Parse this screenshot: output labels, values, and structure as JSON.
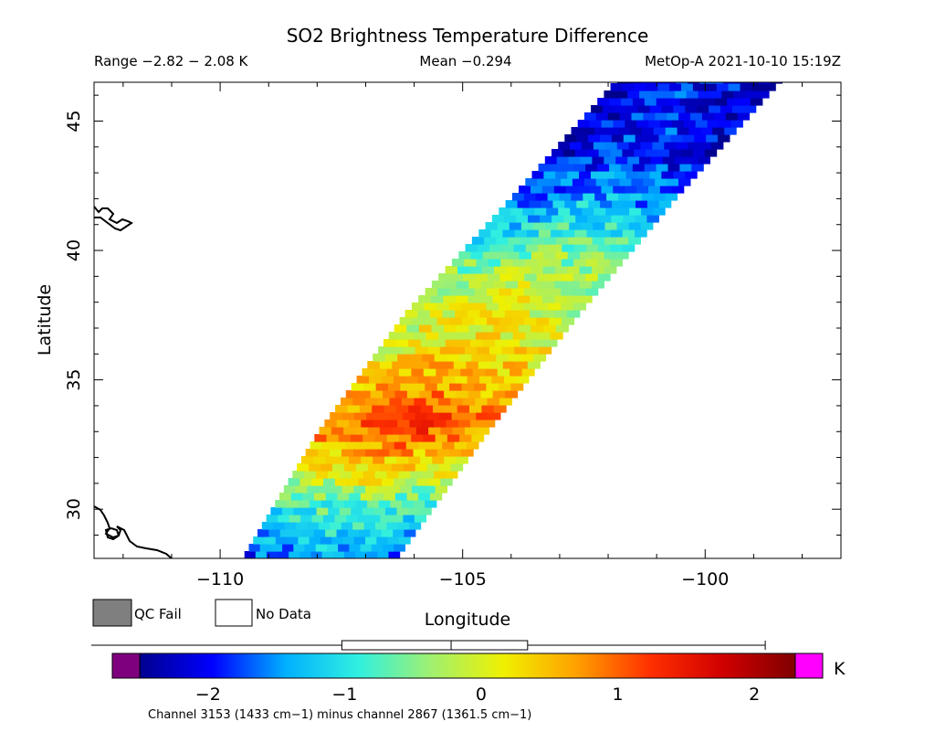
{
  "chart_data": {
    "type": "heatmap",
    "title": "SO2 Brightness Temperature Difference",
    "subtitle": {
      "range": "Range −2.82 − 2.08 K",
      "mean": "Mean −0.294",
      "satellite_time": "MetOp-A 2021-10-10 15:19Z"
    },
    "xlabel": "Longitude",
    "ylabel": "Latitude",
    "xlim": [
      -112.6,
      -97.2
    ],
    "ylim": [
      28.1,
      46.5
    ],
    "x_ticks": [
      {
        "value": -110,
        "label": "−110"
      },
      {
        "value": -105,
        "label": "−105"
      },
      {
        "value": -100,
        "label": "−100"
      }
    ],
    "y_ticks": [
      {
        "value": 30,
        "label": "30"
      },
      {
        "value": 35,
        "label": "35"
      },
      {
        "value": 40,
        "label": "40"
      },
      {
        "value": 45,
        "label": "45"
      }
    ],
    "swath": {
      "left_edge_lon": [
        -109.5,
        -108.0,
        -106.2,
        -104.0,
        -101.8
      ],
      "right_edge_lon": [
        -106.3,
        -104.5,
        -102.6,
        -100.6,
        -98.4
      ],
      "edge_lat": [
        28.1,
        32.8,
        37.4,
        41.9,
        46.5
      ]
    },
    "anomaly_band": [
      {
        "lat": 28.1,
        "value": -1.4
      },
      {
        "lat": 30.0,
        "value": -0.6
      },
      {
        "lat": 31.5,
        "value": 0.4
      },
      {
        "lat": 33.0,
        "value": 1.2
      },
      {
        "lat": 34.5,
        "value": 0.8
      },
      {
        "lat": 36.5,
        "value": 0.3
      },
      {
        "lat": 38.5,
        "value": 0.0
      },
      {
        "lat": 40.0,
        "value": -0.5
      },
      {
        "lat": 41.5,
        "value": -1.2
      },
      {
        "lat": 43.5,
        "value": -1.8
      },
      {
        "lat": 46.5,
        "value": -1.9
      }
    ],
    "legend": {
      "qc_fail": {
        "label": "QC Fail",
        "color": "#7f7f7f"
      },
      "no_data": {
        "label": "No Data",
        "color": "#ffffff"
      }
    },
    "colorbar": {
      "min": -2.5,
      "max": 2.3,
      "unit": "K",
      "ticks": [
        {
          "value": -2,
          "label": "−2"
        },
        {
          "value": -1,
          "label": "−1"
        },
        {
          "value": 0,
          "label": "0"
        },
        {
          "value": 1,
          "label": "1"
        },
        {
          "value": 2,
          "label": "2"
        }
      ],
      "under_color": "#7f007f",
      "over_color": "#ff00ff",
      "stops": [
        "#00008f",
        "#0000ff",
        "#00b0ff",
        "#30f0e0",
        "#a0f070",
        "#f0f000",
        "#ffa000",
        "#ff3000",
        "#d00000",
        "#800000"
      ],
      "boxplot": {
        "min": -2.82,
        "q1": -1.02,
        "median": -0.22,
        "q3": 0.34,
        "max": 2.08
      },
      "caption": "Channel 3153 (1433 cm−1) minus channel 2867 (1361.5 cm−1)"
    }
  }
}
